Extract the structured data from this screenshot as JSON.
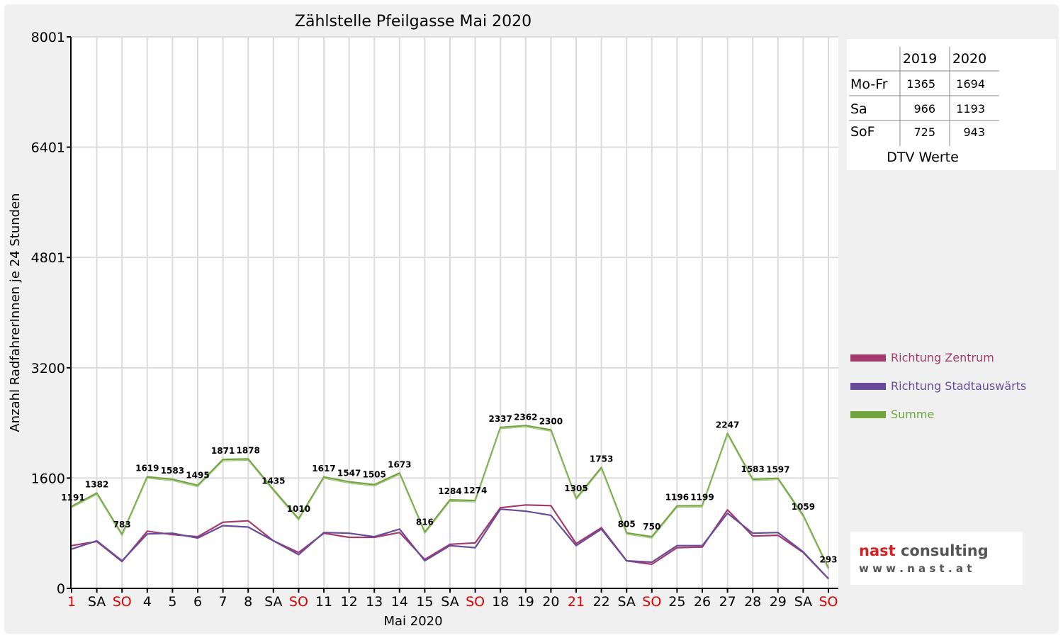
{
  "chart_data": {
    "type": "line",
    "title": "Zählstelle Pfeilgasse Mai 2020",
    "xlabel": "Mai 2020",
    "ylabel": "Anzahl RadfahrerInnen je 24 Stunden",
    "ylim": [
      0,
      8001
    ],
    "yticks": [
      "0",
      "1600",
      "3200",
      "4801",
      "6401",
      "8001"
    ],
    "ytick_values": [
      0,
      1600,
      3200,
      4801,
      6401,
      8001
    ],
    "grid": true,
    "legend_position": "right",
    "categories": [
      "1",
      "SA",
      "SO",
      "4",
      "5",
      "6",
      "7",
      "8",
      "SA",
      "SO",
      "11",
      "12",
      "13",
      "14",
      "15",
      "SA",
      "SO",
      "18",
      "19",
      "20",
      "21",
      "22",
      "SA",
      "SO",
      "25",
      "26",
      "27",
      "28",
      "29",
      "SA",
      "SO"
    ],
    "category_colors": [
      "#e00000",
      "#000000",
      "#e00000",
      "#000000",
      "#000000",
      "#000000",
      "#000000",
      "#000000",
      "#000000",
      "#e00000",
      "#000000",
      "#000000",
      "#000000",
      "#000000",
      "#000000",
      "#000000",
      "#e00000",
      "#000000",
      "#000000",
      "#000000",
      "#e00000",
      "#000000",
      "#000000",
      "#e00000",
      "#000000",
      "#000000",
      "#000000",
      "#000000",
      "#000000",
      "#000000",
      "#e00000"
    ],
    "series": [
      {
        "name": "Richtung Zentrum",
        "color": "#a33a6b",
        "values": [
          620,
          680,
          390,
          830,
          780,
          750,
          960,
          980,
          690,
          520,
          800,
          740,
          740,
          810,
          420,
          640,
          660,
          1170,
          1210,
          1200,
          650,
          880,
          400,
          350,
          590,
          600,
          1140,
          760,
          770,
          520,
          140
        ]
      },
      {
        "name": "Richtung Stadtauswärts",
        "color": "#6a4a9c",
        "values": [
          570,
          690,
          400,
          790,
          800,
          730,
          910,
          890,
          690,
          490,
          810,
          800,
          750,
          860,
          400,
          620,
          590,
          1150,
          1120,
          1060,
          620,
          860,
          400,
          380,
          620,
          620,
          1090,
          800,
          810,
          530,
          140
        ]
      },
      {
        "name": "Summe",
        "color": "#72a43e",
        "values": [
          1191,
          1382,
          783,
          1619,
          1583,
          1495,
          1871,
          1878,
          1435,
          1010,
          1617,
          1547,
          1505,
          1673,
          816,
          1284,
          1274,
          2337,
          2362,
          2300,
          1305,
          1753,
          805,
          750,
          1196,
          1199,
          2247,
          1583,
          1597,
          1059,
          293
        ]
      }
    ],
    "data_labels": [
      "1191",
      "1382",
      "783",
      "1619",
      "1583",
      "1495",
      "1871",
      "1878",
      "1435",
      "1010",
      "1617",
      "1547",
      "1505",
      "1673",
      "816",
      "1284",
      "1274",
      "2337",
      "2362",
      "2300",
      "1305",
      "1753",
      "805",
      "750",
      "1196",
      "1199",
      "2247",
      "1583",
      "1597",
      "1059",
      "293"
    ]
  },
  "dtv_table": {
    "caption": "DTV Werte",
    "columns": [
      "2019",
      "2020"
    ],
    "rows": [
      {
        "label": "Mo-Fr",
        "v2019": "1365",
        "v2020": "1694"
      },
      {
        "label": "Sa",
        "v2019": "966",
        "v2020": "1193"
      },
      {
        "label": "SoF",
        "v2019": "725",
        "v2020": "943"
      }
    ]
  },
  "logo": {
    "brand": "nast consulting",
    "url": "w w w . n a s t . a t"
  }
}
